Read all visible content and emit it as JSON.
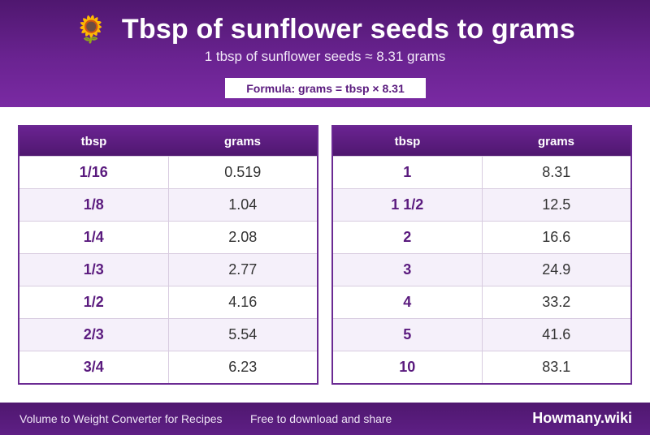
{
  "header": {
    "icon": "sunflower-icon",
    "icon_glyph": "🌻",
    "title": "Tbsp of sunflower seeds to grams",
    "subtitle": "1 tbsp of sunflower seeds ≈ 8.31 grams",
    "formula": "Formula: grams = tbsp × 8.31"
  },
  "tables": [
    {
      "headers": [
        "tbsp",
        "grams"
      ],
      "rows": [
        [
          "1/16",
          "0.519"
        ],
        [
          "1/8",
          "1.04"
        ],
        [
          "1/4",
          "2.08"
        ],
        [
          "1/3",
          "2.77"
        ],
        [
          "1/2",
          "4.16"
        ],
        [
          "2/3",
          "5.54"
        ],
        [
          "3/4",
          "6.23"
        ]
      ]
    },
    {
      "headers": [
        "tbsp",
        "grams"
      ],
      "rows": [
        [
          "1",
          "8.31"
        ],
        [
          "1 1/2",
          "12.5"
        ],
        [
          "2",
          "16.6"
        ],
        [
          "3",
          "24.9"
        ],
        [
          "4",
          "33.2"
        ],
        [
          "5",
          "41.6"
        ],
        [
          "10",
          "83.1"
        ]
      ]
    }
  ],
  "footer": {
    "left_text": "Volume to Weight Converter for Recipes",
    "middle_text": "Free to download and share",
    "brand": "Howmany.wiki"
  },
  "colors": {
    "accent": "#6a2391",
    "accent_dark": "#4f176f",
    "row_alt": "#f5f0fa"
  }
}
